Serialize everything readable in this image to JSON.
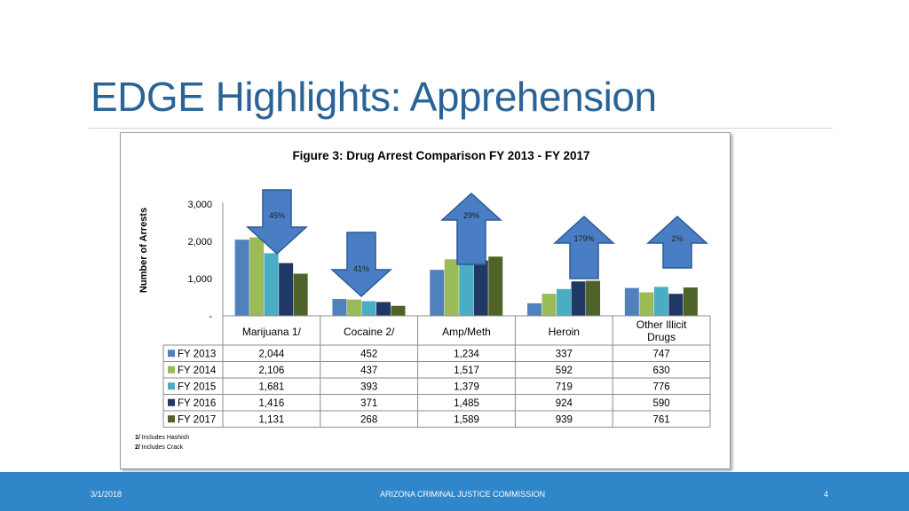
{
  "slide": {
    "title": "EDGE Highlights: Apprehension"
  },
  "footer": {
    "date": "3/1/2018",
    "center_text": "ARIZONA CRIMINAL JUSTICE COMMISSION",
    "page_number": "4",
    "bar_color": "#2f86c9"
  },
  "chart_data": {
    "type": "bar",
    "title": "Figure 3: Drug Arrest Comparison FY 2013 - FY 2017",
    "ylabel": "Number of Arrests",
    "xlabel": "",
    "ylim": [
      0,
      3000
    ],
    "yticks": [
      {
        "value": 0,
        "label": "-"
      },
      {
        "value": 1000,
        "label": "1,000"
      },
      {
        "value": 2000,
        "label": "2,000"
      },
      {
        "value": 3000,
        "label": "3,000"
      }
    ],
    "categories": [
      "Marijuana 1/",
      "Cocaine 2/",
      "Amp/Meth",
      "Heroin",
      "Other Illicit Drugs"
    ],
    "series": [
      {
        "name": "FY 2013",
        "color": "#4f81bd",
        "values": [
          2044,
          452,
          1234,
          337,
          747
        ],
        "labels": [
          "2,044",
          "452",
          "1,234",
          "337",
          "747"
        ]
      },
      {
        "name": "FY 2014",
        "color": "#9bbb59",
        "values": [
          2106,
          437,
          1517,
          592,
          630
        ],
        "labels": [
          "2,106",
          "437",
          "1,517",
          "592",
          "630"
        ]
      },
      {
        "name": "FY 2015",
        "color": "#4bacc6",
        "values": [
          1681,
          393,
          1379,
          719,
          776
        ],
        "labels": [
          "1,681",
          "393",
          "1,379",
          "719",
          "776"
        ]
      },
      {
        "name": "FY 2016",
        "color": "#1f3864",
        "values": [
          1416,
          371,
          1485,
          924,
          590
        ],
        "labels": [
          "1,416",
          "371",
          "1,485",
          "924",
          "590"
        ]
      },
      {
        "name": "FY 2017",
        "color": "#4f6228",
        "values": [
          1131,
          268,
          1589,
          939,
          761
        ],
        "labels": [
          "1,131",
          "268",
          "1,589",
          "939",
          "761"
        ]
      }
    ],
    "annotations": [
      {
        "category": "Marijuana 1/",
        "direction": "down",
        "text": "45%"
      },
      {
        "category": "Cocaine 2/",
        "direction": "down",
        "text": "41%"
      },
      {
        "category": "Amp/Meth",
        "direction": "up",
        "text": "29%"
      },
      {
        "category": "Heroin",
        "direction": "up",
        "text": "179%"
      },
      {
        "category": "Other Illicit Drugs",
        "direction": "up",
        "text": "2%"
      }
    ],
    "arrow_fill": "#4a7ec4",
    "arrow_stroke": "#2d5a96",
    "footnotes": [
      {
        "mark": "1/",
        "text": "Includes Hashish"
      },
      {
        "mark": "2/",
        "text": "Includes Crack"
      }
    ],
    "grid": false,
    "legend_placement": "table-left"
  }
}
